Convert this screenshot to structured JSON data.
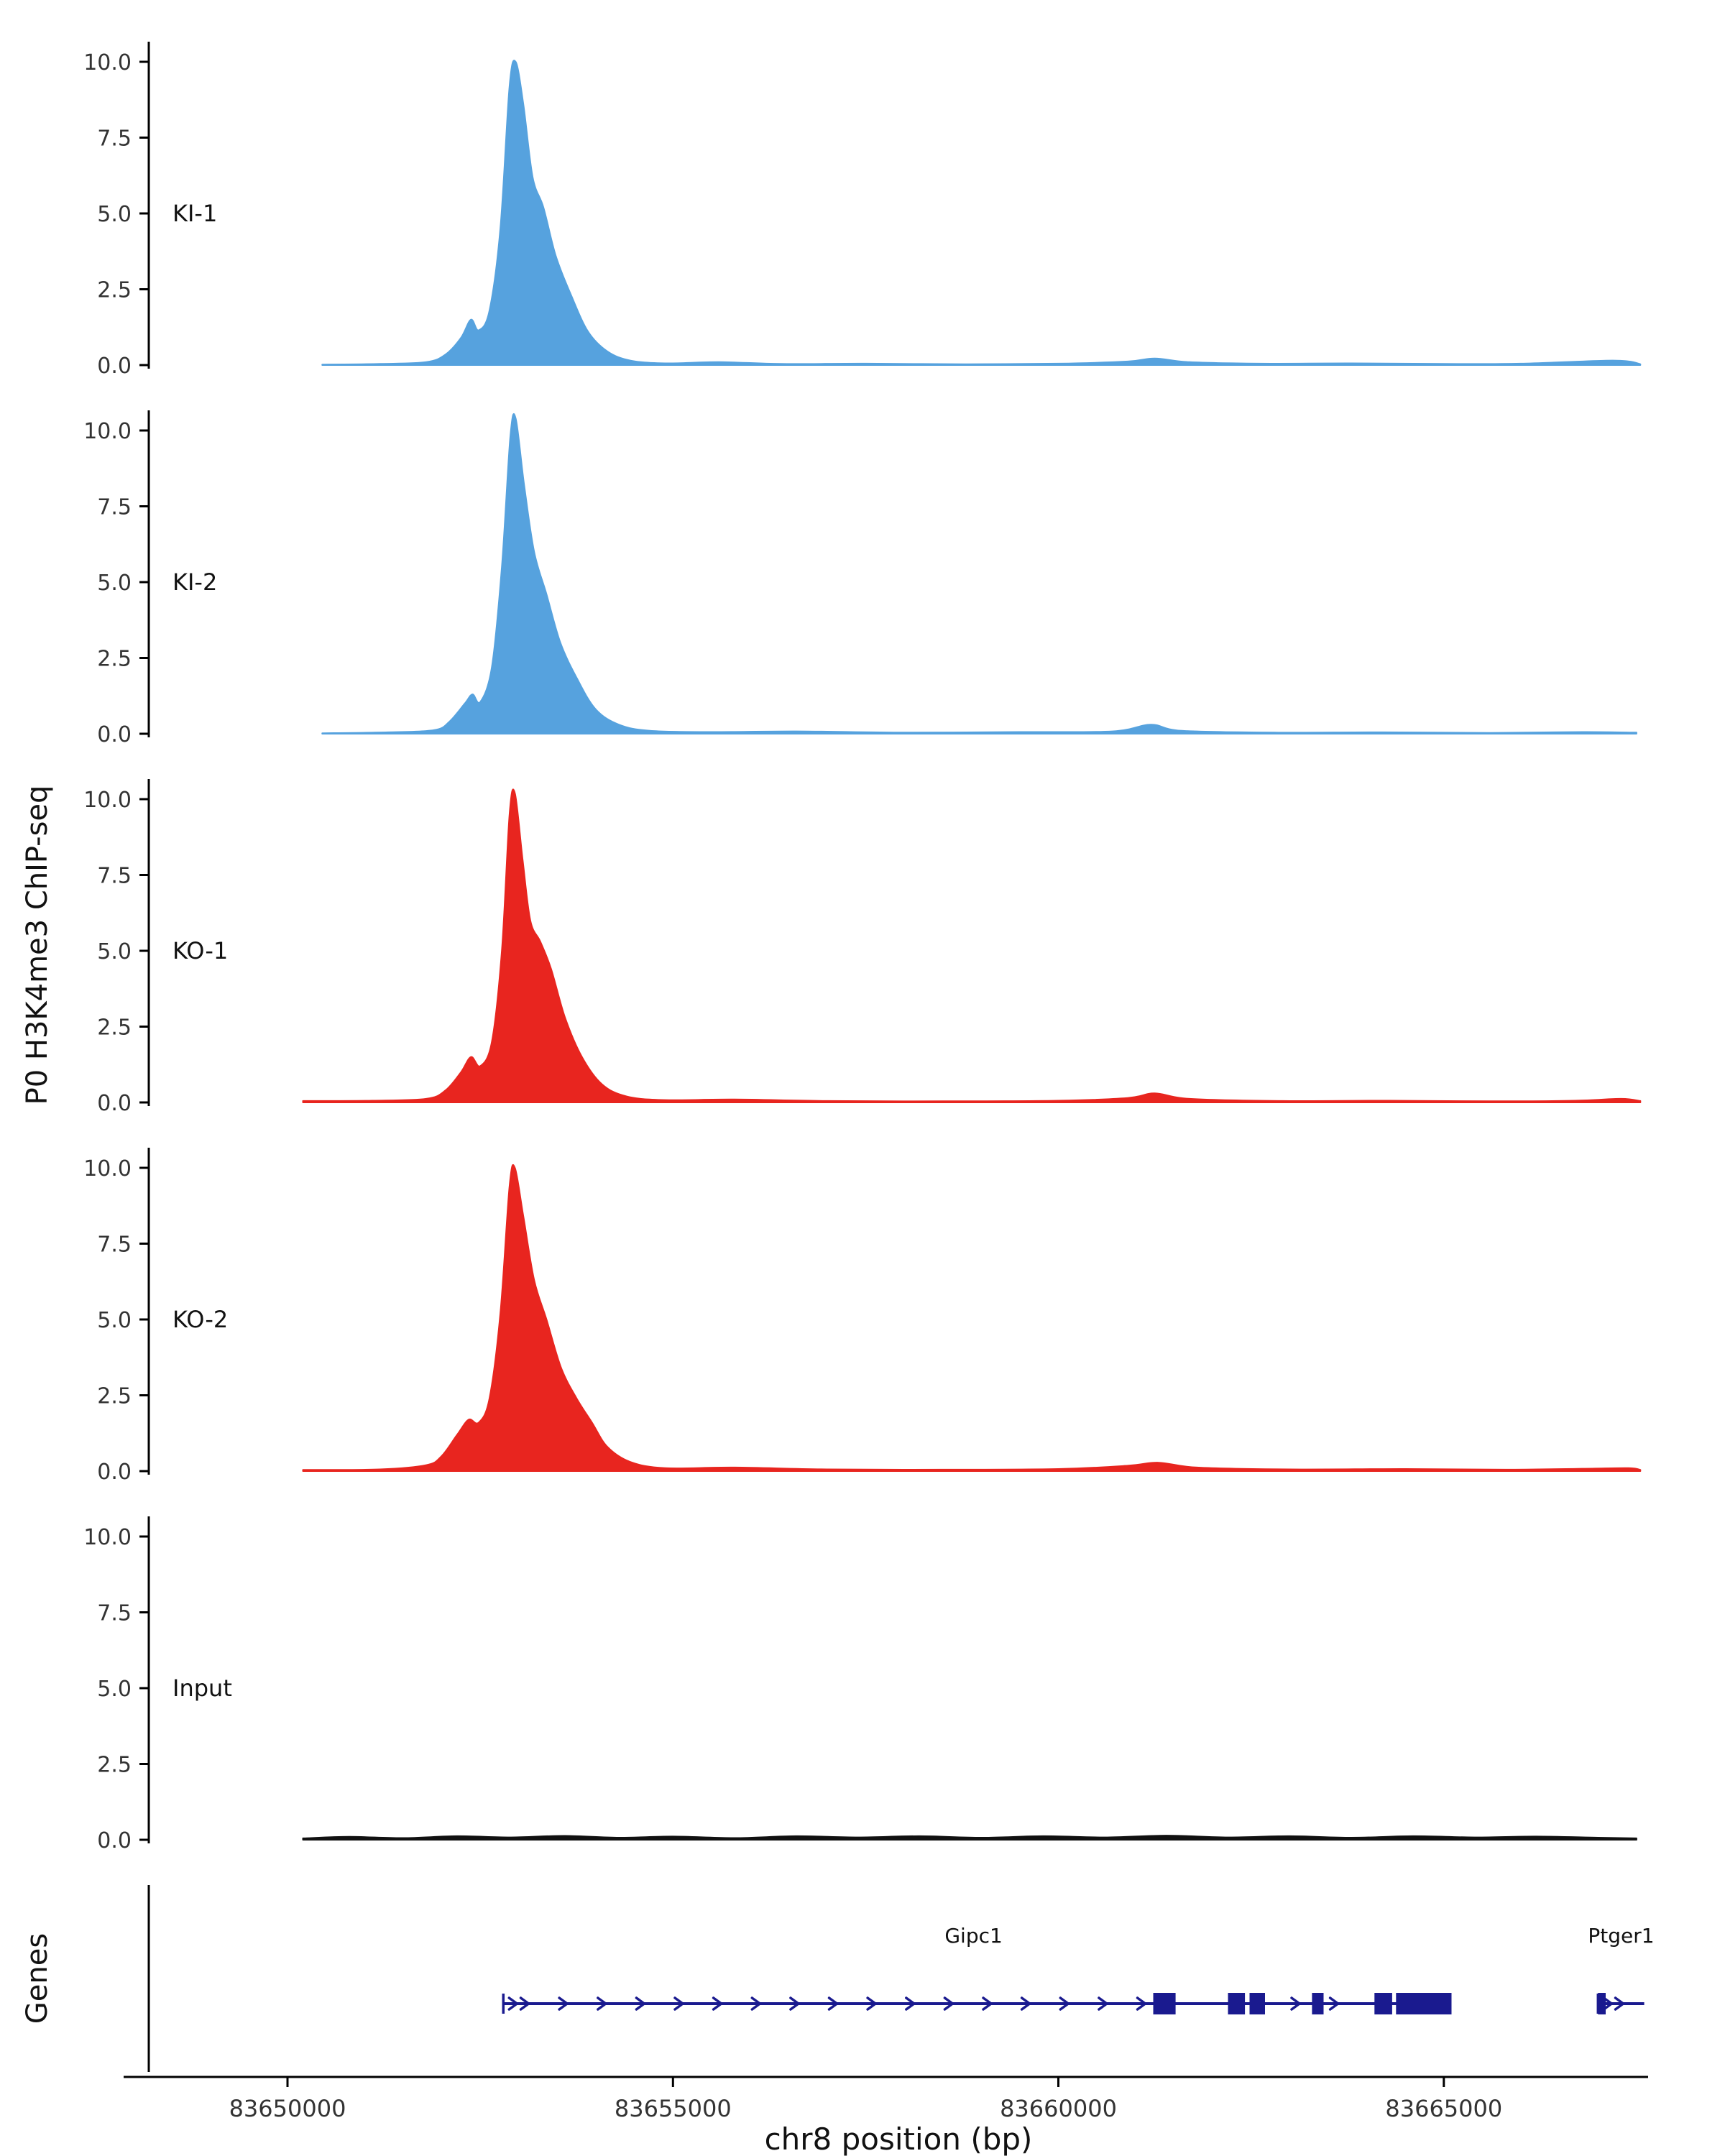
{
  "figure": {
    "background": "#ffffff",
    "axis_color": "#000000",
    "tick_label_color": "#333333",
    "text_color": "#111111"
  },
  "chart_data": {
    "type": "area",
    "title": "",
    "xlabel": "chr8 position (bp)",
    "ylabel": "P0 H3K4me3 ChIP-seq",
    "x_domain": [
      83648200,
      83667650
    ],
    "x_ticks": [
      83650000,
      83655000,
      83660000,
      83665000
    ],
    "x_tick_labels": [
      "83650000",
      "83655000",
      "83660000",
      "83665000"
    ],
    "y_ticks": [
      0.0,
      2.5,
      5.0,
      7.5,
      10.0
    ],
    "y_tick_labels": [
      "0.0",
      "2.5",
      "5.0",
      "7.5",
      "10.0"
    ],
    "y_max": 10.9,
    "grid": "off",
    "legend": "none",
    "tracks": [
      {
        "name": "KI-1",
        "color": "#56a2de",
        "points": [
          [
            83650450,
            0.02
          ],
          [
            83651200,
            0.04
          ],
          [
            83651800,
            0.1
          ],
          [
            83652050,
            0.35
          ],
          [
            83652250,
            0.9
          ],
          [
            83652380,
            1.5
          ],
          [
            83652480,
            1.15
          ],
          [
            83652620,
            1.8
          ],
          [
            83652760,
            4.5
          ],
          [
            83652880,
            9.2
          ],
          [
            83652960,
            10.0
          ],
          [
            83653060,
            8.6
          ],
          [
            83653180,
            6.2
          ],
          [
            83653320,
            5.2
          ],
          [
            83653480,
            3.6
          ],
          [
            83653680,
            2.3
          ],
          [
            83653900,
            1.1
          ],
          [
            83654150,
            0.45
          ],
          [
            83654450,
            0.15
          ],
          [
            83654900,
            0.06
          ],
          [
            83655600,
            0.1
          ],
          [
            83656400,
            0.04
          ],
          [
            83657500,
            0.05
          ],
          [
            83658800,
            0.03
          ],
          [
            83660000,
            0.05
          ],
          [
            83660900,
            0.12
          ],
          [
            83661250,
            0.22
          ],
          [
            83661700,
            0.1
          ],
          [
            83662600,
            0.05
          ],
          [
            83663800,
            0.06
          ],
          [
            83665000,
            0.04
          ],
          [
            83666000,
            0.05
          ],
          [
            83667100,
            0.15
          ],
          [
            83667400,
            0.12
          ],
          [
            83667550,
            0.03
          ]
        ]
      },
      {
        "name": "KI-2",
        "color": "#56a2de",
        "points": [
          [
            83650450,
            0.02
          ],
          [
            83651300,
            0.05
          ],
          [
            83651900,
            0.12
          ],
          [
            83652100,
            0.4
          ],
          [
            83652300,
            1.0
          ],
          [
            83652400,
            1.3
          ],
          [
            83652500,
            1.05
          ],
          [
            83652650,
            2.2
          ],
          [
            83652780,
            5.5
          ],
          [
            83652890,
            9.8
          ],
          [
            83652960,
            10.4
          ],
          [
            83653070,
            8.2
          ],
          [
            83653200,
            6.0
          ],
          [
            83653360,
            4.6
          ],
          [
            83653540,
            3.0
          ],
          [
            83653760,
            1.8
          ],
          [
            83654000,
            0.8
          ],
          [
            83654300,
            0.3
          ],
          [
            83654700,
            0.1
          ],
          [
            83655500,
            0.06
          ],
          [
            83656600,
            0.08
          ],
          [
            83658000,
            0.04
          ],
          [
            83659500,
            0.06
          ],
          [
            83660700,
            0.08
          ],
          [
            83661200,
            0.3
          ],
          [
            83661600,
            0.1
          ],
          [
            83662800,
            0.04
          ],
          [
            83664200,
            0.05
          ],
          [
            83665600,
            0.03
          ],
          [
            83666800,
            0.06
          ],
          [
            83667500,
            0.04
          ]
        ]
      },
      {
        "name": "KO-1",
        "color": "#e8251f",
        "points": [
          [
            83650200,
            0.05
          ],
          [
            83651100,
            0.06
          ],
          [
            83651800,
            0.12
          ],
          [
            83652050,
            0.4
          ],
          [
            83652250,
            1.0
          ],
          [
            83652380,
            1.5
          ],
          [
            83652500,
            1.2
          ],
          [
            83652650,
            2.0
          ],
          [
            83652780,
            5.0
          ],
          [
            83652880,
            9.5
          ],
          [
            83652950,
            10.2
          ],
          [
            83653050,
            8.0
          ],
          [
            83653150,
            6.0
          ],
          [
            83653280,
            5.3
          ],
          [
            83653420,
            4.4
          ],
          [
            83653600,
            2.8
          ],
          [
            83653820,
            1.5
          ],
          [
            83654080,
            0.6
          ],
          [
            83654400,
            0.2
          ],
          [
            83654900,
            0.08
          ],
          [
            83655800,
            0.1
          ],
          [
            83657000,
            0.05
          ],
          [
            83658500,
            0.04
          ],
          [
            83660000,
            0.06
          ],
          [
            83660900,
            0.15
          ],
          [
            83661250,
            0.3
          ],
          [
            83661700,
            0.12
          ],
          [
            83662900,
            0.05
          ],
          [
            83664300,
            0.06
          ],
          [
            83665600,
            0.04
          ],
          [
            83666700,
            0.06
          ],
          [
            83667300,
            0.12
          ],
          [
            83667550,
            0.05
          ]
        ]
      },
      {
        "name": "KO-2",
        "color": "#e8251f",
        "points": [
          [
            83650200,
            0.04
          ],
          [
            83651200,
            0.06
          ],
          [
            83651800,
            0.2
          ],
          [
            83652000,
            0.5
          ],
          [
            83652200,
            1.2
          ],
          [
            83652350,
            1.7
          ],
          [
            83652480,
            1.6
          ],
          [
            83652620,
            2.4
          ],
          [
            83652760,
            5.2
          ],
          [
            83652880,
            9.4
          ],
          [
            83652950,
            10.0
          ],
          [
            83653060,
            8.4
          ],
          [
            83653200,
            6.3
          ],
          [
            83653360,
            5.0
          ],
          [
            83653550,
            3.4
          ],
          [
            83653750,
            2.4
          ],
          [
            83653950,
            1.6
          ],
          [
            83654150,
            0.8
          ],
          [
            83654450,
            0.3
          ],
          [
            83654900,
            0.1
          ],
          [
            83655800,
            0.12
          ],
          [
            83657000,
            0.06
          ],
          [
            83658500,
            0.05
          ],
          [
            83660000,
            0.07
          ],
          [
            83660900,
            0.18
          ],
          [
            83661300,
            0.28
          ],
          [
            83661800,
            0.12
          ],
          [
            83663000,
            0.06
          ],
          [
            83664500,
            0.07
          ],
          [
            83665800,
            0.05
          ],
          [
            83666800,
            0.08
          ],
          [
            83667400,
            0.1
          ],
          [
            83667550,
            0.04
          ]
        ]
      },
      {
        "name": "Input",
        "color": "#111111",
        "points": [
          [
            83650200,
            0.05
          ],
          [
            83650800,
            0.1
          ],
          [
            83651500,
            0.06
          ],
          [
            83652200,
            0.12
          ],
          [
            83652900,
            0.08
          ],
          [
            83653600,
            0.13
          ],
          [
            83654300,
            0.07
          ],
          [
            83655000,
            0.11
          ],
          [
            83655800,
            0.06
          ],
          [
            83656600,
            0.12
          ],
          [
            83657400,
            0.08
          ],
          [
            83658200,
            0.12
          ],
          [
            83659000,
            0.07
          ],
          [
            83659800,
            0.12
          ],
          [
            83660600,
            0.08
          ],
          [
            83661400,
            0.14
          ],
          [
            83662200,
            0.08
          ],
          [
            83663000,
            0.12
          ],
          [
            83663800,
            0.07
          ],
          [
            83664600,
            0.12
          ],
          [
            83665400,
            0.08
          ],
          [
            83666200,
            0.11
          ],
          [
            83667000,
            0.07
          ],
          [
            83667500,
            0.05
          ]
        ]
      }
    ],
    "genes": {
      "label": "Genes",
      "color": "#1a1a8f",
      "items": [
        {
          "name": "Gipc1",
          "start": 83652800,
          "end": 83665100,
          "strand": "+",
          "label_bp": 83658900,
          "exons": [
            [
              83661230,
              83661520
            ],
            [
              83662200,
              83662420
            ],
            [
              83662480,
              83662680
            ],
            [
              83663290,
              83663440
            ],
            [
              83664100,
              83664330
            ],
            [
              83664380,
              83665100
            ]
          ]
        },
        {
          "name": "Ptger1",
          "start": 83667000,
          "end": 83667600,
          "strand": "+",
          "label_bp": 83667300,
          "exons": [
            [
              83667000,
              83667100
            ]
          ]
        }
      ]
    }
  }
}
